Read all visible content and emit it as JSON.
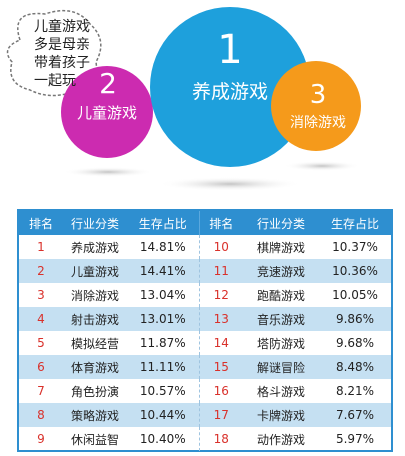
{
  "speech": {
    "lines": [
      "儿童游戏",
      "多是母亲",
      "带着孩子",
      "一起玩"
    ]
  },
  "bubbles": [
    {
      "number": "1",
      "label": "养成游戏",
      "color": "#1ea0dc"
    },
    {
      "number": "2",
      "label": "儿童游戏",
      "color": "#cc2bb0"
    },
    {
      "number": "3",
      "label": "消除游戏",
      "color": "#f59a1b"
    }
  ],
  "colors": {
    "header": "#2e8fd0",
    "stripe": "#c5e0f2",
    "rank": "#d9312b"
  },
  "chart_data": {
    "type": "table",
    "columns": [
      "排名",
      "行业分类",
      "生存占比",
      "排名",
      "行业分类",
      "生存占比"
    ],
    "rows": [
      [
        "1",
        "养成游戏",
        "14.81%",
        "10",
        "棋牌游戏",
        "10.37%"
      ],
      [
        "2",
        "儿童游戏",
        "14.41%",
        "11",
        "竞速游戏",
        "10.36%"
      ],
      [
        "3",
        "消除游戏",
        "13.04%",
        "12",
        "跑酷游戏",
        "10.05%"
      ],
      [
        "4",
        "射击游戏",
        "13.01%",
        "13",
        "音乐游戏",
        "9.86%"
      ],
      [
        "5",
        "模拟经营",
        "11.87%",
        "14",
        "塔防游戏",
        "9.68%"
      ],
      [
        "6",
        "体育游戏",
        "11.11%",
        "15",
        "解谜冒险",
        "8.48%"
      ],
      [
        "7",
        "角色扮演",
        "10.57%",
        "16",
        "格斗游戏",
        "8.21%"
      ],
      [
        "8",
        "策略游戏",
        "10.44%",
        "17",
        "卡牌游戏",
        "7.67%"
      ],
      [
        "9",
        "休闲益智",
        "10.40%",
        "18",
        "动作游戏",
        "5.97%"
      ]
    ]
  }
}
